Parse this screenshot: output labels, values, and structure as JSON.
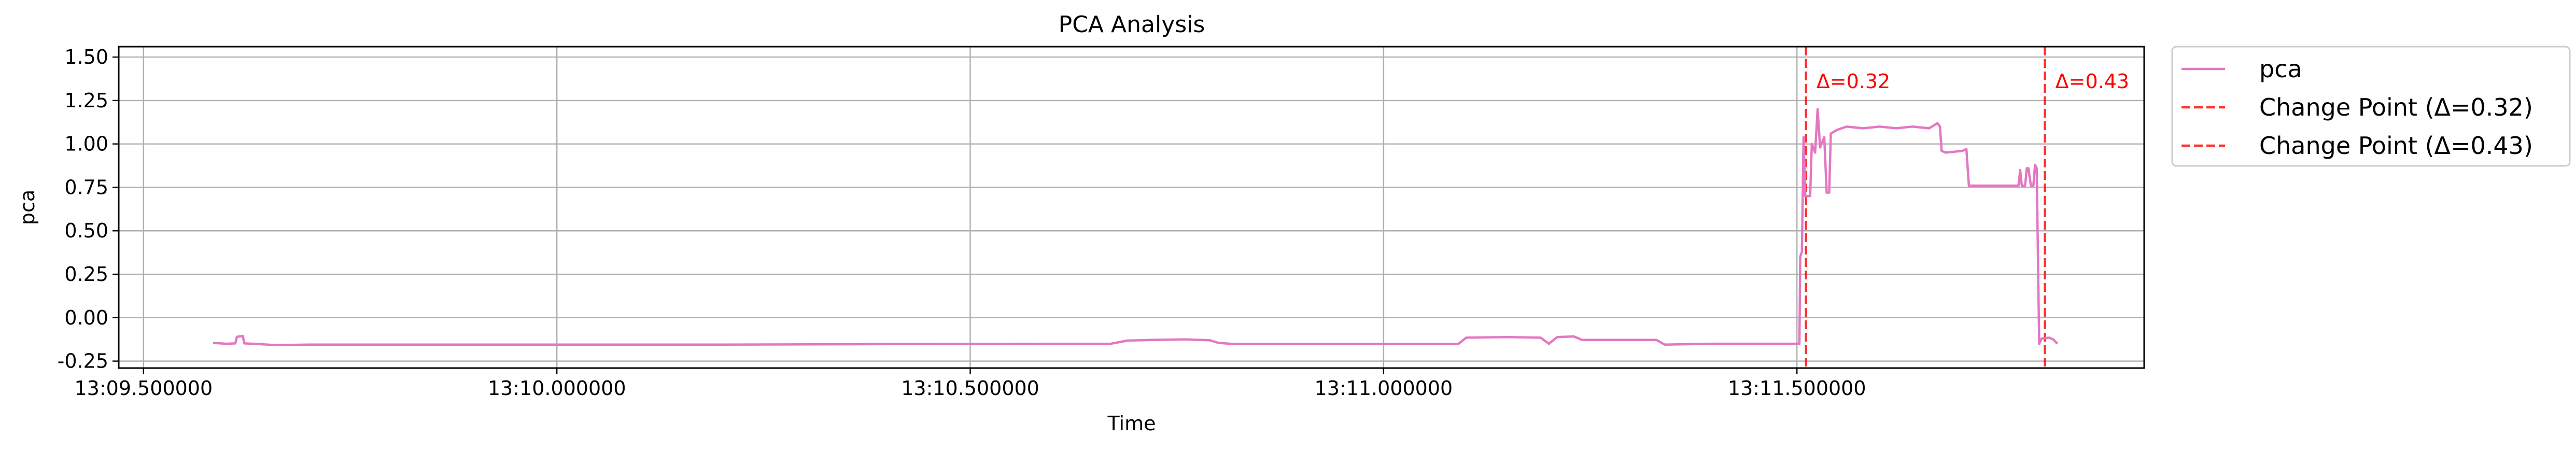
{
  "chart_data": {
    "type": "line",
    "title": "PCA Analysis",
    "xlabel": "Time",
    "ylabel": "pca",
    "x_unit": "seconds past 13:09",
    "xlim": [
      30.47,
      32.92
    ],
    "ylim": [
      -0.29,
      1.56
    ],
    "x_ticks": [
      {
        "value": 30.5,
        "label": "13:09.500000"
      },
      {
        "value": 31.0,
        "label": "13:10.000000"
      },
      {
        "value": 31.5,
        "label": "13:10.500000"
      },
      {
        "value": 32.0,
        "label": "13:11.000000"
      },
      {
        "value": 32.5,
        "label": "13:11.500000"
      }
    ],
    "y_ticks": [
      {
        "value": -0.25,
        "label": "-0.25"
      },
      {
        "value": 0.0,
        "label": "0.00"
      },
      {
        "value": 0.25,
        "label": "0.25"
      },
      {
        "value": 0.5,
        "label": "0.50"
      },
      {
        "value": 0.75,
        "label": "0.75"
      },
      {
        "value": 1.0,
        "label": "1.00"
      },
      {
        "value": 1.25,
        "label": "1.25"
      },
      {
        "value": 1.5,
        "label": "1.50"
      }
    ],
    "grid": true,
    "legend_position": "outside-right-top",
    "series": [
      {
        "name": "pca",
        "color": "#e377c2",
        "points": [
          [
            30.584,
            -0.145
          ],
          [
            30.6,
            -0.15
          ],
          [
            30.611,
            -0.148
          ],
          [
            30.613,
            -0.11
          ],
          [
            30.62,
            -0.105
          ],
          [
            30.622,
            -0.148
          ],
          [
            30.64,
            -0.152
          ],
          [
            30.66,
            -0.158
          ],
          [
            30.7,
            -0.155
          ],
          [
            30.8,
            -0.155
          ],
          [
            31.0,
            -0.155
          ],
          [
            31.2,
            -0.155
          ],
          [
            31.4,
            -0.152
          ],
          [
            31.67,
            -0.15
          ],
          [
            31.69,
            -0.132
          ],
          [
            31.72,
            -0.128
          ],
          [
            31.76,
            -0.125
          ],
          [
            31.79,
            -0.13
          ],
          [
            31.8,
            -0.145
          ],
          [
            31.82,
            -0.152
          ],
          [
            32.0,
            -0.152
          ],
          [
            32.09,
            -0.152
          ],
          [
            32.1,
            -0.115
          ],
          [
            32.15,
            -0.112
          ],
          [
            32.19,
            -0.115
          ],
          [
            32.2,
            -0.15
          ],
          [
            32.21,
            -0.112
          ],
          [
            32.23,
            -0.108
          ],
          [
            32.24,
            -0.128
          ],
          [
            32.33,
            -0.128
          ],
          [
            32.34,
            -0.155
          ],
          [
            32.4,
            -0.15
          ],
          [
            32.5,
            -0.15
          ],
          [
            32.503,
            -0.15
          ],
          [
            32.504,
            0.35
          ],
          [
            32.506,
            0.38
          ],
          [
            32.508,
            1.04
          ],
          [
            32.51,
            0.7
          ],
          [
            32.516,
            0.7
          ],
          [
            32.518,
            1.0
          ],
          [
            32.522,
            0.95
          ],
          [
            32.525,
            1.2
          ],
          [
            32.528,
            0.98
          ],
          [
            32.533,
            1.04
          ],
          [
            32.536,
            0.72
          ],
          [
            32.539,
            0.72
          ],
          [
            32.541,
            1.06
          ],
          [
            32.548,
            1.08
          ],
          [
            32.56,
            1.1
          ],
          [
            32.58,
            1.09
          ],
          [
            32.6,
            1.1
          ],
          [
            32.62,
            1.09
          ],
          [
            32.64,
            1.1
          ],
          [
            32.66,
            1.09
          ],
          [
            32.67,
            1.12
          ],
          [
            32.673,
            1.1
          ],
          [
            32.675,
            0.96
          ],
          [
            32.68,
            0.95
          ],
          [
            32.7,
            0.96
          ],
          [
            32.705,
            0.97
          ],
          [
            32.708,
            0.76
          ],
          [
            32.72,
            0.76
          ],
          [
            32.75,
            0.76
          ],
          [
            32.768,
            0.76
          ],
          [
            32.77,
            0.85
          ],
          [
            32.772,
            0.76
          ],
          [
            32.776,
            0.76
          ],
          [
            32.778,
            0.86
          ],
          [
            32.78,
            0.86
          ],
          [
            32.783,
            0.76
          ],
          [
            32.786,
            0.76
          ],
          [
            32.788,
            0.88
          ],
          [
            32.79,
            0.86
          ],
          [
            32.793,
            -0.15
          ],
          [
            32.796,
            -0.12
          ],
          [
            32.805,
            -0.115
          ],
          [
            32.81,
            -0.125
          ],
          [
            32.815,
            -0.15
          ]
        ]
      }
    ],
    "change_points": [
      {
        "x": 32.511,
        "delta_label": "Δ=0.32",
        "legend_label": "Change Point (Δ=0.32)",
        "color": "#ff0000"
      },
      {
        "x": 32.8,
        "delta_label": "Δ=0.43",
        "legend_label": "Change Point (Δ=0.43)",
        "color": "#ff0000"
      }
    ]
  }
}
